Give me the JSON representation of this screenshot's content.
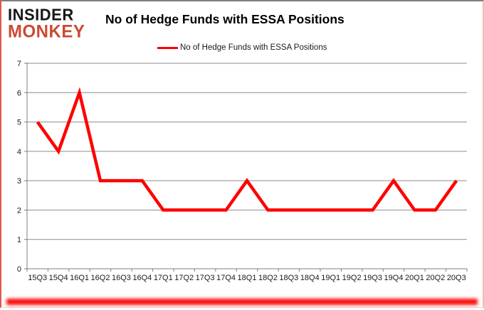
{
  "logo": {
    "line1": "INSIDER",
    "line2": "MONKEY"
  },
  "header": {
    "title": "No of Hedge Funds with ESSA Positions"
  },
  "legend": {
    "label": "No of Hedge Funds with ESSA Positions"
  },
  "colors": {
    "series_line": "#ff0000",
    "gridline": "#8c8c8c",
    "axis": "#7f7f7f",
    "tick_text": "#1a1a1a",
    "logo_black": "#171717",
    "logo_red": "#cb4a32",
    "bottom_glow": "#fb0d0c"
  },
  "chart_data": {
    "type": "line",
    "title": "No of Hedge Funds with ESSA Positions",
    "legend_entries": [
      "No of Hedge Funds with ESSA Positions"
    ],
    "legend_position": "top",
    "grid": true,
    "xlabel": "",
    "ylabel": "",
    "ylim": [
      0,
      7
    ],
    "yticks": [
      0,
      1,
      2,
      3,
      4,
      5,
      6,
      7
    ],
    "categories": [
      "15Q3",
      "15Q4",
      "16Q1",
      "16Q2",
      "16Q3",
      "16Q4",
      "17Q1",
      "17Q2",
      "17Q3",
      "17Q4",
      "18Q1",
      "18Q2",
      "18Q3",
      "18Q4",
      "19Q1",
      "19Q2",
      "19Q3",
      "19Q4",
      "20Q1",
      "20Q2",
      "20Q3"
    ],
    "series": [
      {
        "name": "No of Hedge Funds with ESSA Positions",
        "values": [
          5,
          4,
          6,
          3,
          3,
          3,
          2,
          2,
          2,
          2,
          3,
          2,
          2,
          2,
          2,
          2,
          2,
          3,
          2,
          2,
          3
        ]
      }
    ]
  }
}
